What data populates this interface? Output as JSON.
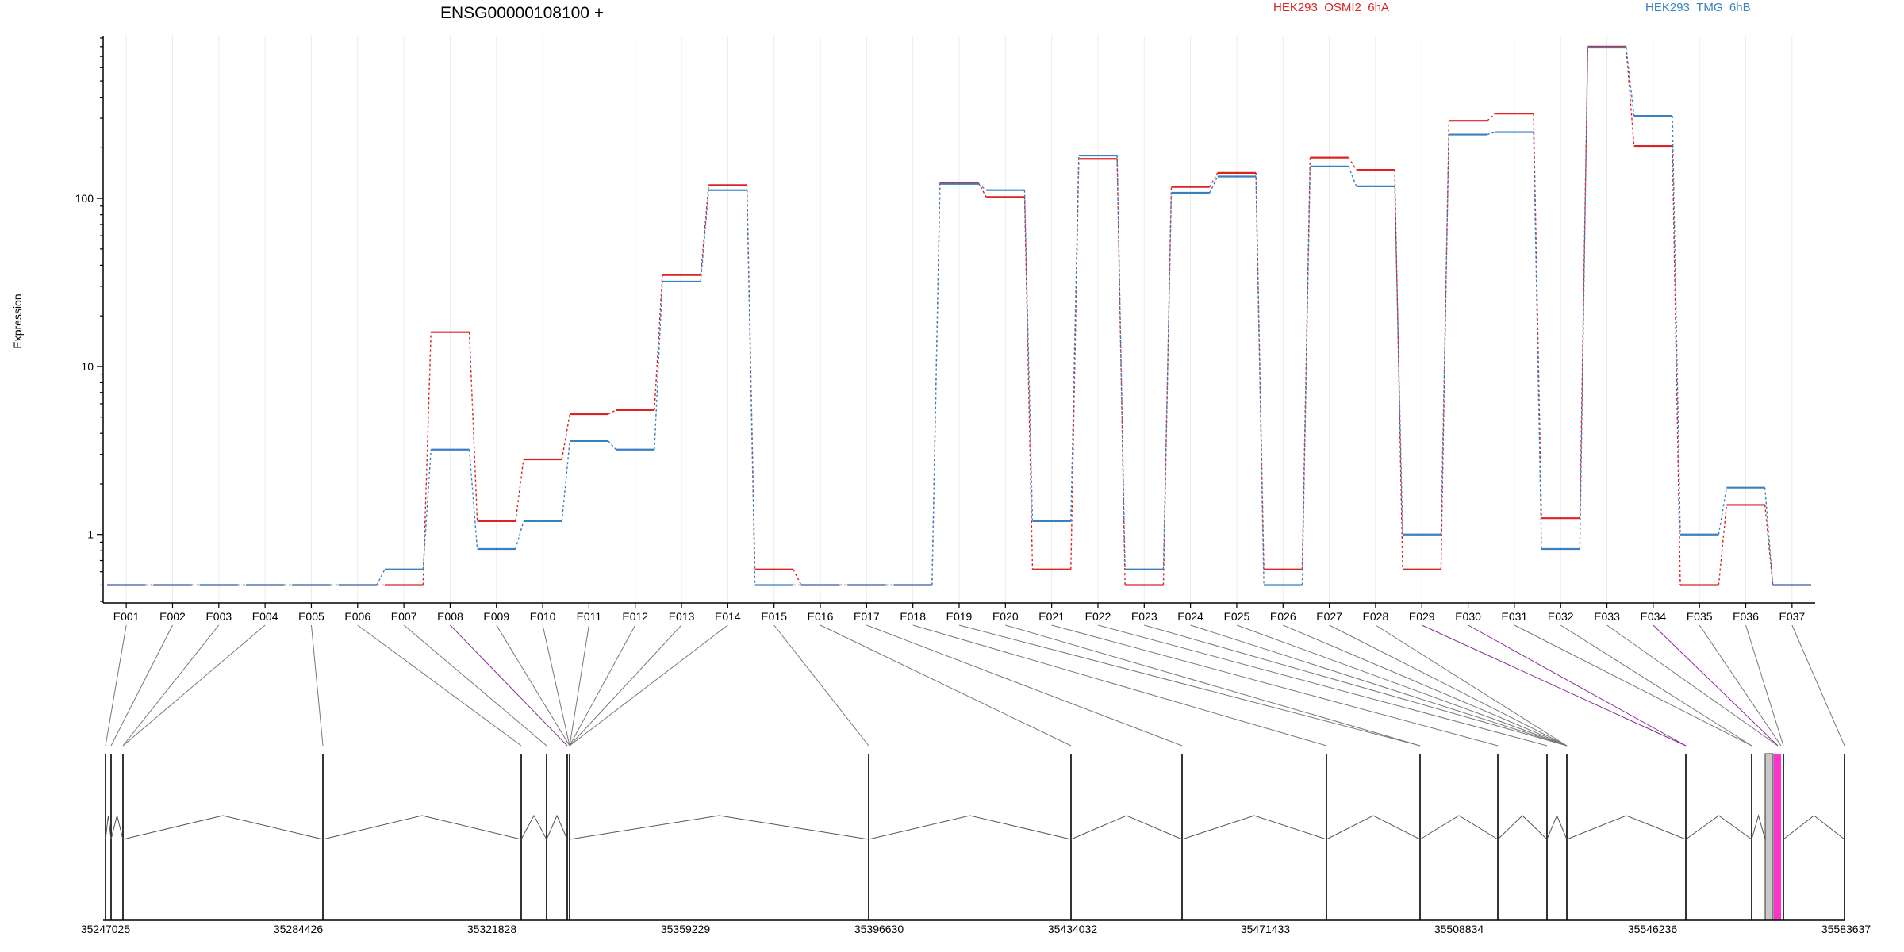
{
  "chart_data": {
    "type": "line",
    "title": "ENSG00000108100 +",
    "ylabel": "Expression",
    "yscale": "log",
    "ylim": [
      0.4,
      900
    ],
    "yticks": [
      1,
      10,
      100
    ],
    "ytick_labels": [
      "1",
      "10",
      "100"
    ],
    "grid": true,
    "legend_placement": "top-right",
    "categories": [
      "E001",
      "E002",
      "E003",
      "E004",
      "E005",
      "E006",
      "E007",
      "E008",
      "E009",
      "E010",
      "E011",
      "E012",
      "E013",
      "E014",
      "E015",
      "E016",
      "E017",
      "E018",
      "E019",
      "E020",
      "E021",
      "E022",
      "E023",
      "E024",
      "E025",
      "E026",
      "E027",
      "E028",
      "E029",
      "E030",
      "E031",
      "E032",
      "E033",
      "E034",
      "E035",
      "E036",
      "E037"
    ],
    "series": [
      {
        "name": "HEK293_OSMI2_6hA",
        "color": "#dd2222",
        "values": [
          0.5,
          0.5,
          0.5,
          0.5,
          0.5,
          0.5,
          0.5,
          16,
          1.2,
          2.8,
          5.2,
          5.5,
          35,
          120,
          0.62,
          0.5,
          0.5,
          0.5,
          124,
          102,
          0.62,
          172,
          0.5,
          117,
          142,
          0.62,
          175,
          148,
          0.62,
          290,
          320,
          1.25,
          800,
          205,
          0.5,
          1.5,
          0.5
        ]
      },
      {
        "name": "HEK293_TMG_6hB",
        "color": "#3a7fc1",
        "values": [
          0.5,
          0.5,
          0.5,
          0.5,
          0.5,
          0.5,
          0.62,
          3.2,
          0.82,
          1.2,
          3.6,
          3.2,
          32,
          112,
          0.5,
          0.5,
          0.5,
          0.5,
          122,
          112,
          1.2,
          180,
          0.62,
          108,
          135,
          0.5,
          155,
          118,
          1.0,
          240,
          248,
          0.82,
          790,
          310,
          1.0,
          1.9,
          0.5
        ]
      }
    ],
    "gene_model": {
      "coordinate_ticks": [
        "35247025",
        "35284426",
        "35321828",
        "35359229",
        "35396630",
        "35434032",
        "35471433",
        "35508834",
        "35546236",
        "35583637"
      ],
      "exon_highlight_colors": {
        "default": "#000000",
        "highlight": "#8b2a9a",
        "tested": "#ff33cc",
        "tested_bg": "#c8c8c8"
      }
    }
  }
}
